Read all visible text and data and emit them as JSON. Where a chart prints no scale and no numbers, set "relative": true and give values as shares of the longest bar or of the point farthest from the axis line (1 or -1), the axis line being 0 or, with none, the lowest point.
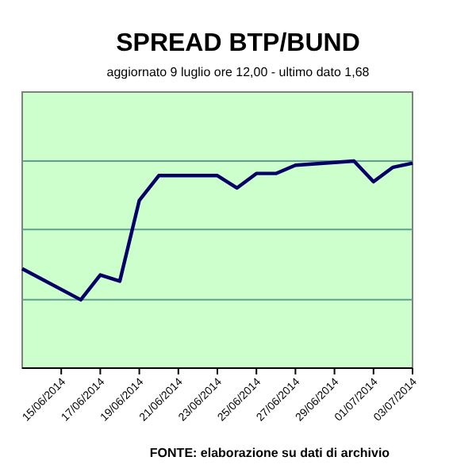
{
  "chart_data": {
    "type": "line",
    "title": "SPREAD BTP/BUND",
    "subtitle": "aggiornato 9 luglio ore 12,00 - ultimo dato 1,68",
    "annotations": [
      "FONTE: elaborazione su dati di archivio"
    ],
    "relative": true,
    "x": [
      "2014-06-13",
      "2014-06-16",
      "2014-06-17",
      "2014-06-18",
      "2014-06-19",
      "2014-06-20",
      "2014-06-23",
      "2014-06-24",
      "2014-06-25",
      "2014-06-26",
      "2014-06-27",
      "2014-06-30",
      "2014-07-01",
      "2014-07-02",
      "2014-07-03"
    ],
    "series": [
      {
        "color": "#000066",
        "values": [
          0.48,
          0.33,
          0.45,
          0.42,
          0.81,
          0.93,
          0.93,
          0.87,
          0.94,
          0.94,
          0.98,
          1,
          0.9,
          0.97,
          0.99
        ]
      }
    ],
    "xlim": [
      "2014-06-13",
      "2014-07-03"
    ],
    "xticks": [
      {
        "value": "2014-06-15",
        "label": "15/06/2014"
      },
      {
        "value": "2014-06-17",
        "label": "17/06/2014"
      },
      {
        "value": "2014-06-19",
        "label": "19/06/2014"
      },
      {
        "value": "2014-06-21",
        "label": "21/06/2014"
      },
      {
        "value": "2014-06-23",
        "label": "23/06/2014"
      },
      {
        "value": "2014-06-25",
        "label": "25/06/2014"
      },
      {
        "value": "2014-06-27",
        "label": "27/06/2014"
      },
      {
        "value": "2014-06-29",
        "label": "29/06/2014"
      },
      {
        "value": "2014-07-01",
        "label": "01/07/2014"
      },
      {
        "value": "2014-07-03",
        "label": "03/07/2014"
      }
    ],
    "ref_lines": [
      {
        "axis": "y",
        "value": 0.33,
        "color": "#5f9f8f"
      },
      {
        "axis": "y",
        "value": 0.67,
        "color": "#5f9f8f"
      },
      {
        "axis": "y",
        "value": 1,
        "color": "#5f9f8f"
      }
    ],
    "marker": "none",
    "line_style": "solid"
  }
}
